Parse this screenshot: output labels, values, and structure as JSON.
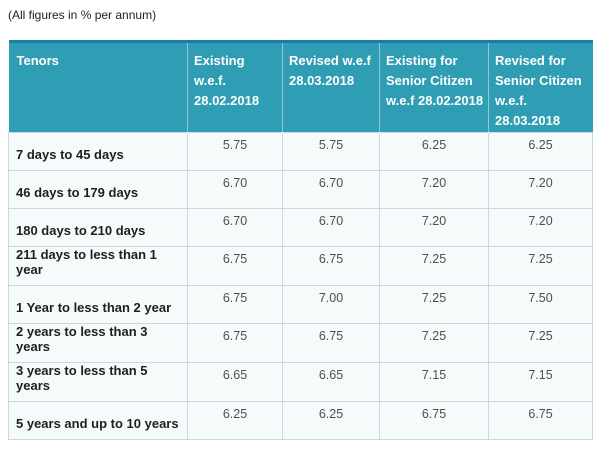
{
  "note": "(All figures in % per annum)",
  "colors": {
    "header_bg": "#2F9DB3",
    "header_top_border": "#1D7EA8",
    "header_text": "#FFFFFF",
    "body_bg": "#F5FAFB",
    "body_border": "#CCD9DE",
    "tenor_text": "#1F1F1F",
    "rate_text": "#4F4F4F"
  },
  "table": {
    "columns": [
      {
        "id": "tenors",
        "lines": [
          "Tenors"
        ]
      },
      {
        "id": "existing",
        "lines": [
          "Existing w.e.f.",
          "28.02.2018"
        ]
      },
      {
        "id": "revised",
        "lines": [
          "Revised w.e.f",
          "28.03.2018"
        ]
      },
      {
        "id": "existing-senior",
        "lines": [
          "Existing for",
          "Senior Citizen",
          "w.e.f 28.02.2018"
        ]
      },
      {
        "id": "revised-senior",
        "lines": [
          "Revised for",
          "Senior Citizen",
          "w.e.f.",
          "28.03.2018"
        ]
      }
    ],
    "rows": [
      {
        "tenor": "7 days to 45 days",
        "rates": [
          "5.75",
          "5.75",
          "6.25",
          "6.25"
        ]
      },
      {
        "tenor": "46 days to 179 days",
        "rates": [
          "6.70",
          "6.70",
          "7.20",
          "7.20"
        ]
      },
      {
        "tenor": "180 days to 210 days",
        "rates": [
          "6.70",
          "6.70",
          "7.20",
          "7.20"
        ]
      },
      {
        "tenor": "211 days to less than 1 year",
        "rates": [
          "6.75",
          "6.75",
          "7.25",
          "7.25"
        ]
      },
      {
        "tenor": "1 Year to less than 2 year",
        "rates": [
          "6.75",
          "7.00",
          "7.25",
          "7.50"
        ]
      },
      {
        "tenor": "2 years to less than 3 years",
        "rates": [
          "6.75",
          "6.75",
          "7.25",
          "7.25"
        ]
      },
      {
        "tenor": "3 years to less than 5 years",
        "rates": [
          "6.65",
          "6.65",
          "7.15",
          "7.15"
        ]
      },
      {
        "tenor": "5 years and up to 10 years",
        "rates": [
          "6.25",
          "6.25",
          "6.75",
          "6.75"
        ]
      }
    ]
  }
}
